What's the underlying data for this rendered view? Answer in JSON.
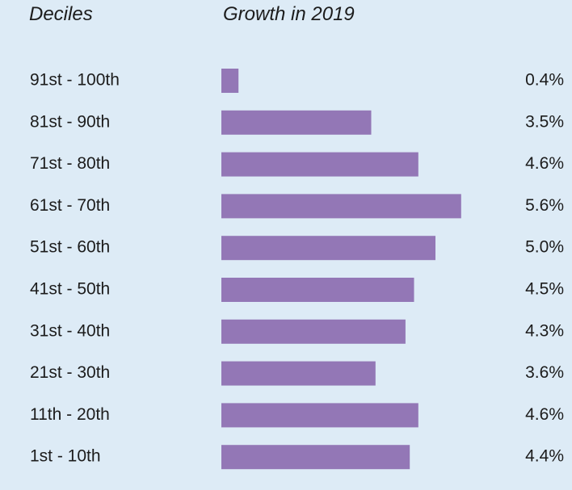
{
  "header": {
    "category_label": "Deciles",
    "value_label": "Growth in 2019"
  },
  "colors": {
    "background": "#ddebf6",
    "bar": "#9377b6",
    "text": "#1c1c1c"
  },
  "chart_data": {
    "type": "bar",
    "orientation": "horizontal",
    "title": "",
    "xlabel": "Growth in 2019",
    "ylabel": "Deciles",
    "xlim": [
      0,
      5.6
    ],
    "grid": false,
    "legend": "none",
    "categories": [
      "91st - 100th",
      "81st - 90th",
      "71st - 80th",
      "61st - 70th",
      "51st - 60th",
      "41st - 50th",
      "31st - 40th",
      "21st - 30th",
      "11th - 20th",
      "1st - 10th"
    ],
    "values": [
      0.4,
      3.5,
      4.6,
      5.6,
      5.0,
      4.5,
      4.3,
      3.6,
      4.6,
      4.4
    ],
    "value_labels": [
      "0.4%",
      "3.5%",
      "4.6%",
      "5.6%",
      "5.0%",
      "4.5%",
      "4.3%",
      "3.6%",
      "4.6%",
      "4.4%"
    ]
  }
}
